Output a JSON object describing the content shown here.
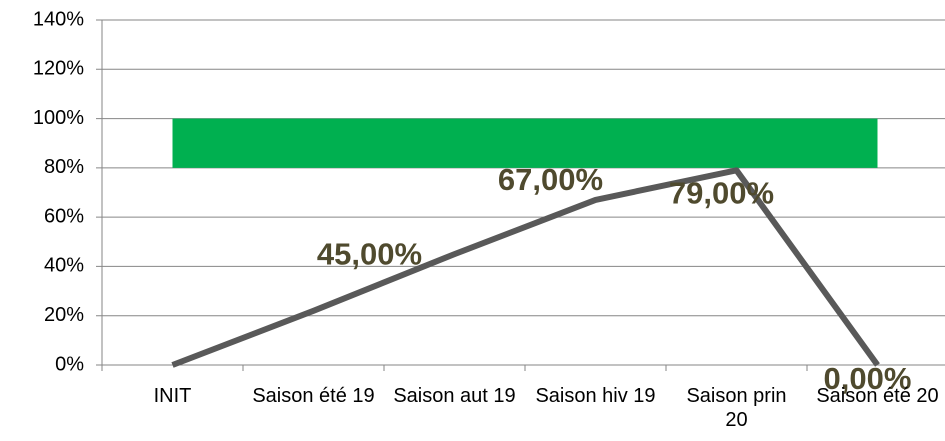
{
  "chart_data": {
    "type": "line",
    "categories": [
      "INIT",
      "Saison été 19",
      "Saison aut 19",
      "Saison hiv 19",
      "Saison prin 20",
      "Saison été 20"
    ],
    "series": [
      {
        "color": "#595959",
        "values": [
          0,
          22,
          45,
          67,
          79,
          0
        ],
        "value_labels": [
          null,
          null,
          "45,00%",
          "67,00%",
          "79,00%",
          "0,00%"
        ]
      }
    ],
    "band": {
      "from": 80,
      "to": 100,
      "color": "#00b050"
    },
    "ylim": [
      0,
      140
    ],
    "yticks": [
      {
        "value": 0,
        "label": "0%"
      },
      {
        "value": 20,
        "label": "20%"
      },
      {
        "value": 40,
        "label": "40%"
      },
      {
        "value": 60,
        "label": "60%"
      },
      {
        "value": 80,
        "label": "80%"
      },
      {
        "value": 100,
        "label": "100%"
      },
      {
        "value": 120,
        "label": "120%"
      },
      {
        "value": 140,
        "label": "140%"
      }
    ],
    "grid": true
  }
}
